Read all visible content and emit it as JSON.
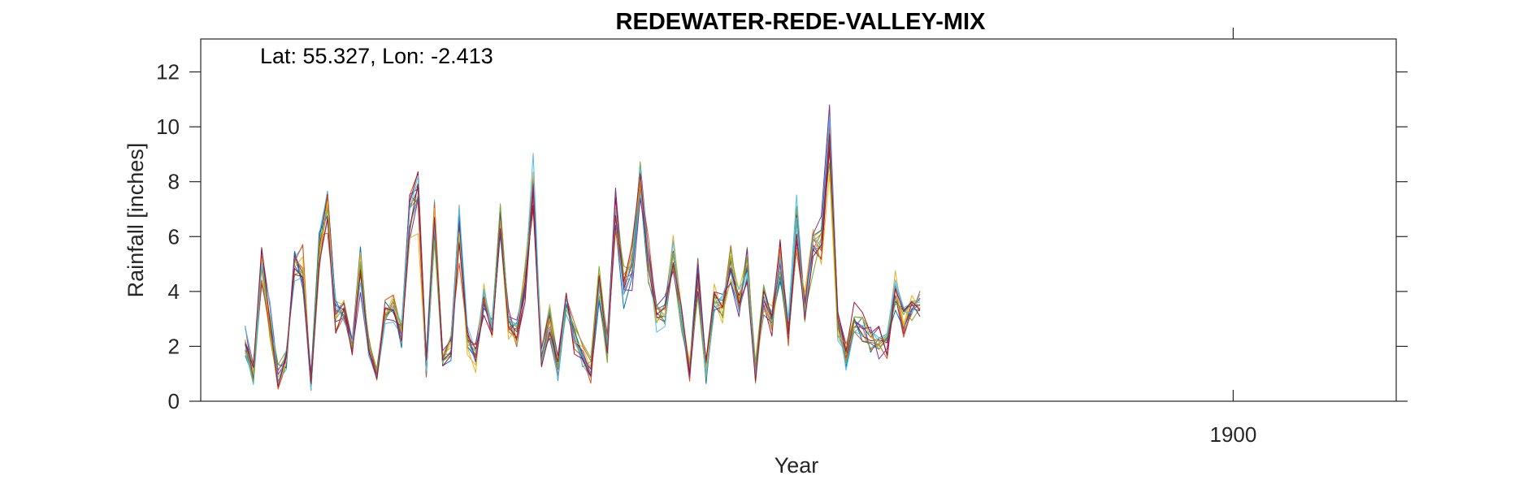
{
  "chart_data": {
    "type": "line",
    "title": "REDEWATER-REDE-VALLEY-MIX",
    "annotation": "Lat: 55.327, Lon: -2.413",
    "xlabel": "Year",
    "ylabel": "Rainfall [inches]",
    "ylim": [
      0,
      13.2
    ],
    "yticks": [
      0,
      2,
      4,
      6,
      8,
      10,
      12
    ],
    "xlim": [
      1889.55,
      1901.65
    ],
    "xticks": [
      1900
    ],
    "grid": false,
    "legend": "none",
    "x_start_year": 1890,
    "x_step_years": 0.0833,
    "series_colors": [
      "#0072BD",
      "#D95319",
      "#EDB120",
      "#7E2F8E",
      "#77AC30",
      "#4DBEEE",
      "#A2142F",
      "#0072BD",
      "#D95319",
      "#EDB120",
      "#7E2F8E",
      "#77AC30",
      "#4DBEEE",
      "#A2142F"
    ],
    "base": [
      2.4,
      1.0,
      5.2,
      3.0,
      0.9,
      1.6,
      5.0,
      5.0,
      0.6,
      5.8,
      7.3,
      3.1,
      3.3,
      2.1,
      4.9,
      2.0,
      1.0,
      3.2,
      3.5,
      2.5,
      7.0,
      7.5,
      1.3,
      7.0,
      1.6,
      2.0,
      6.3,
      2.3,
      1.6,
      3.8,
      2.6,
      6.5,
      3.0,
      2.6,
      4.3,
      8.0,
      1.6,
      3.0,
      1.2,
      3.8,
      2.4,
      1.6,
      1.1,
      4.5,
      2.0,
      6.8,
      4.2,
      5.0,
      8.2,
      5.2,
      3.2,
      3.2,
      5.4,
      3.2,
      1.2,
      4.5,
      1.1,
      3.8,
      3.5,
      5.0,
      3.5,
      5.0,
      1.0,
      3.8,
      3.0,
      5.2,
      2.6,
      6.5,
      3.3,
      5.7,
      6.0,
      9.8,
      3.0,
      1.6,
      3.0,
      2.7,
      2.4,
      2.2,
      2.2,
      4.3,
      3.0,
      3.6,
      3.6
    ]
  }
}
